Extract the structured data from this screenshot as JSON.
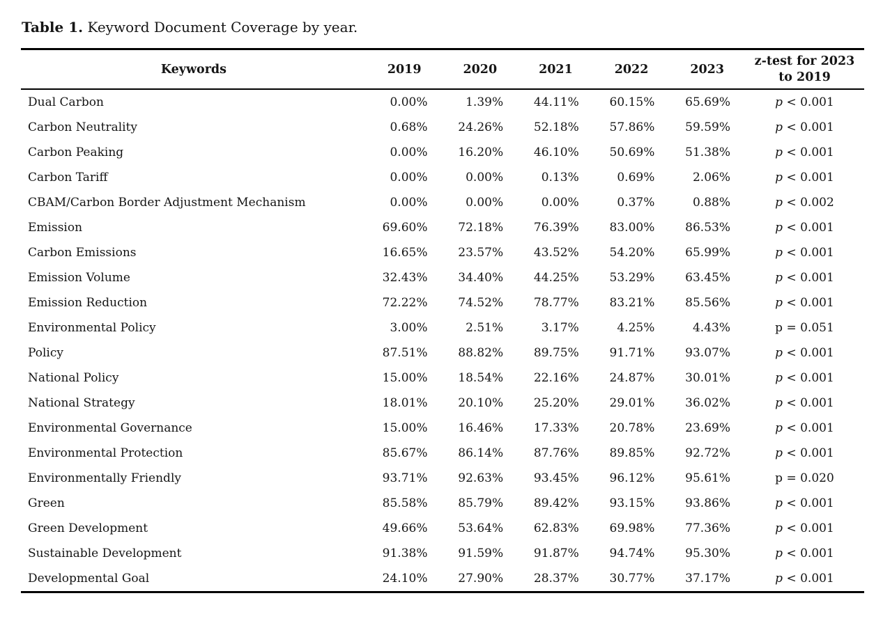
{
  "caption": {
    "label": "Table 1.",
    "text": "Keyword Document Coverage by year."
  },
  "table": {
    "header": {
      "keywords": "Keywords",
      "years": [
        "2019",
        "2020",
        "2021",
        "2022",
        "2023"
      ],
      "ztest_line1": "z-test for 2023",
      "ztest_line2": "to 2019"
    },
    "rows": [
      {
        "keyword": "Dual Carbon",
        "values": [
          "0.00%",
          "1.39%",
          "44.11%",
          "60.15%",
          "65.69%"
        ],
        "ztest": {
          "p": "p",
          "rest": "< 0.001",
          "italic": true
        }
      },
      {
        "keyword": "Carbon Neutrality",
        "values": [
          "0.68%",
          "24.26%",
          "52.18%",
          "57.86%",
          "59.59%"
        ],
        "ztest": {
          "p": "p",
          "rest": "< 0.001",
          "italic": true
        }
      },
      {
        "keyword": "Carbon Peaking",
        "values": [
          "0.00%",
          "16.20%",
          "46.10%",
          "50.69%",
          "51.38%"
        ],
        "ztest": {
          "p": "p",
          "rest": "< 0.001",
          "italic": true
        }
      },
      {
        "keyword": "Carbon Tariff",
        "values": [
          "0.00%",
          "0.00%",
          "0.13%",
          "0.69%",
          "2.06%"
        ],
        "ztest": {
          "p": "p",
          "rest": "< 0.001",
          "italic": true
        }
      },
      {
        "keyword": "CBAM/Carbon Border Adjustment Mechanism",
        "values": [
          "0.00%",
          "0.00%",
          "0.00%",
          "0.37%",
          "0.88%"
        ],
        "ztest": {
          "p": "p",
          "rest": "< 0.002",
          "italic": true
        }
      },
      {
        "keyword": "Emission",
        "values": [
          "69.60%",
          "72.18%",
          "76.39%",
          "83.00%",
          "86.53%"
        ],
        "ztest": {
          "p": "p",
          "rest": "< 0.001",
          "italic": true
        }
      },
      {
        "keyword": "Carbon Emissions",
        "values": [
          "16.65%",
          "23.57%",
          "43.52%",
          "54.20%",
          "65.99%"
        ],
        "ztest": {
          "p": "p",
          "rest": "< 0.001",
          "italic": true
        }
      },
      {
        "keyword": "Emission Volume",
        "values": [
          "32.43%",
          "34.40%",
          "44.25%",
          "53.29%",
          "63.45%"
        ],
        "ztest": {
          "p": "p",
          "rest": "< 0.001",
          "italic": true
        }
      },
      {
        "keyword": "Emission Reduction",
        "values": [
          "72.22%",
          "74.52%",
          "78.77%",
          "83.21%",
          "85.56%"
        ],
        "ztest": {
          "p": "p",
          "rest": "< 0.001",
          "italic": true
        }
      },
      {
        "keyword": "Environmental Policy",
        "values": [
          "3.00%",
          "2.51%",
          "3.17%",
          "4.25%",
          "4.43%"
        ],
        "ztest": {
          "p": "p",
          "rest": "= 0.051",
          "italic": false
        }
      },
      {
        "keyword": "Policy",
        "values": [
          "87.51%",
          "88.82%",
          "89.75%",
          "91.71%",
          "93.07%"
        ],
        "ztest": {
          "p": "p",
          "rest": "< 0.001",
          "italic": true
        }
      },
      {
        "keyword": "National Policy",
        "values": [
          "15.00%",
          "18.54%",
          "22.16%",
          "24.87%",
          "30.01%"
        ],
        "ztest": {
          "p": "p",
          "rest": "< 0.001",
          "italic": true
        }
      },
      {
        "keyword": "National Strategy",
        "values": [
          "18.01%",
          "20.10%",
          "25.20%",
          "29.01%",
          "36.02%"
        ],
        "ztest": {
          "p": "p",
          "rest": "< 0.001",
          "italic": true
        }
      },
      {
        "keyword": "Environmental Governance",
        "values": [
          "15.00%",
          "16.46%",
          "17.33%",
          "20.78%",
          "23.69%"
        ],
        "ztest": {
          "p": "p",
          "rest": "< 0.001",
          "italic": true
        }
      },
      {
        "keyword": "Environmental Protection",
        "values": [
          "85.67%",
          "86.14%",
          "87.76%",
          "89.85%",
          "92.72%"
        ],
        "ztest": {
          "p": "p",
          "rest": "< 0.001",
          "italic": true
        }
      },
      {
        "keyword": "Environmentally Friendly",
        "values": [
          "93.71%",
          "92.63%",
          "93.45%",
          "96.12%",
          "95.61%"
        ],
        "ztest": {
          "p": "p",
          "rest": "= 0.020",
          "italic": false
        }
      },
      {
        "keyword": "Green",
        "values": [
          "85.58%",
          "85.79%",
          "89.42%",
          "93.15%",
          "93.86%"
        ],
        "ztest": {
          "p": "p",
          "rest": "< 0.001",
          "italic": true
        }
      },
      {
        "keyword": "Green Development",
        "values": [
          "49.66%",
          "53.64%",
          "62.83%",
          "69.98%",
          "77.36%"
        ],
        "ztest": {
          "p": "p",
          "rest": "< 0.001",
          "italic": true
        }
      },
      {
        "keyword": "Sustainable Development",
        "values": [
          "91.38%",
          "91.59%",
          "91.87%",
          "94.74%",
          "95.30%"
        ],
        "ztest": {
          "p": "p",
          "rest": "< 0.001",
          "italic": true
        }
      },
      {
        "keyword": "Developmental Goal",
        "values": [
          "24.10%",
          "27.90%",
          "28.37%",
          "30.77%",
          "37.17%"
        ],
        "ztest": {
          "p": "p",
          "rest": "< 0.001",
          "italic": true
        }
      }
    ]
  }
}
